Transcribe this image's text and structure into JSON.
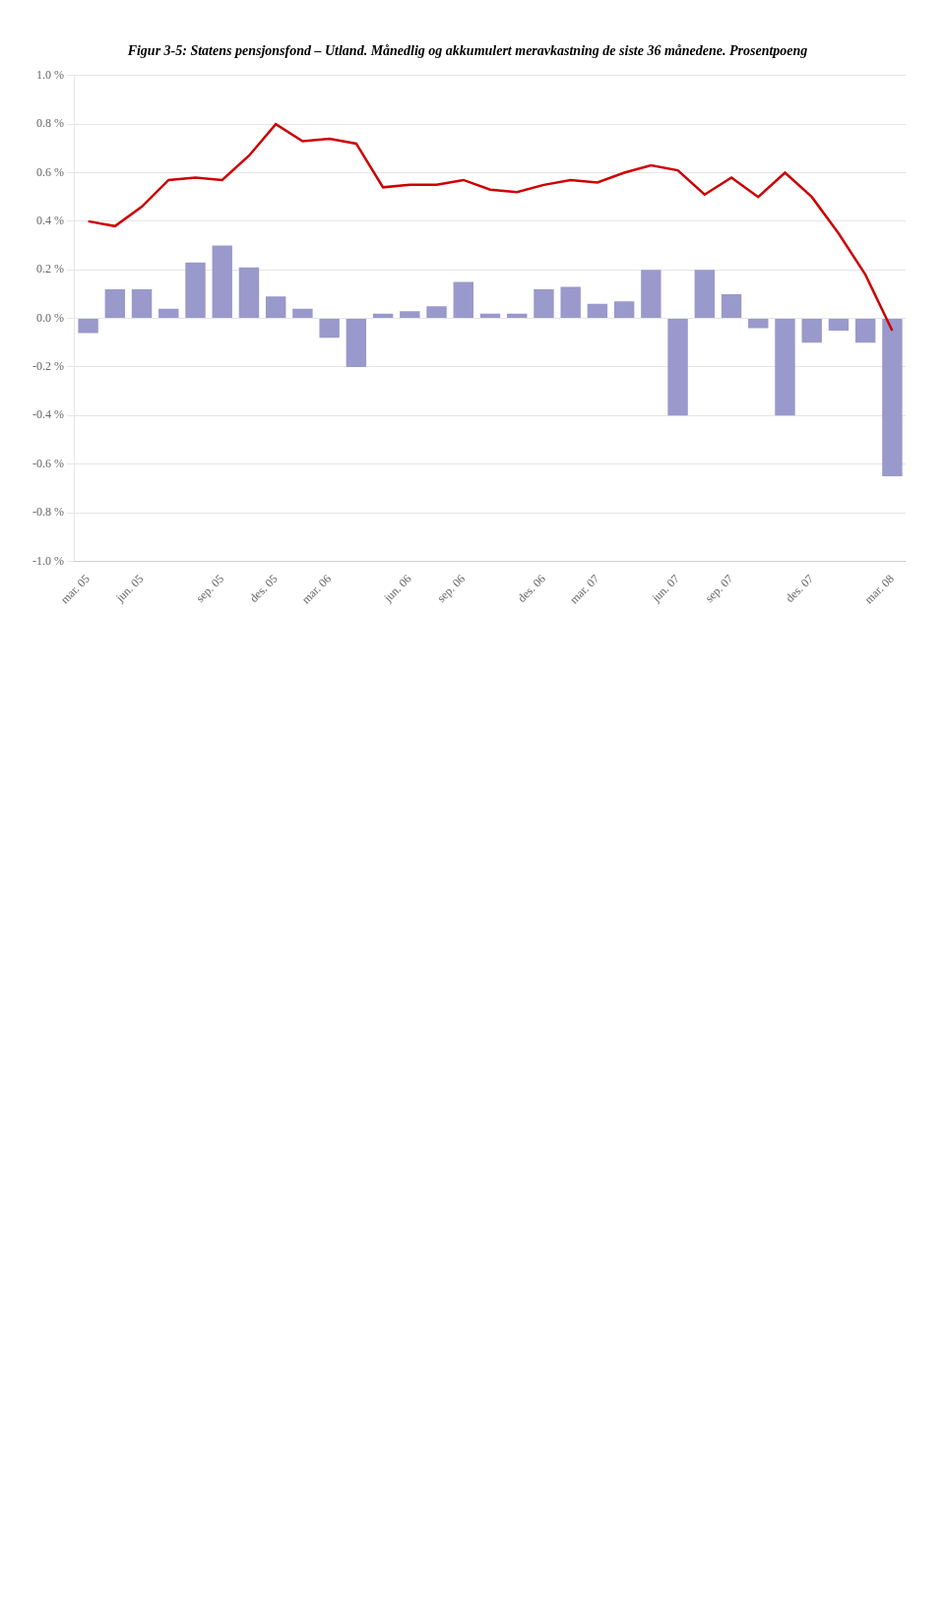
{
  "chart_data": {
    "type": "bar",
    "title": "Figur 3-5: Statens pensjonsfond – Utland. Månedlig og akkumulert meravkastning de siste 36 månedene. Prosentpoeng",
    "categories": [
      "mar. 05",
      null,
      "jun. 05",
      null,
      null,
      "sep. 05",
      null,
      "des. 05",
      null,
      "mar. 06",
      null,
      null,
      "jun. 06",
      null,
      "sep. 06",
      null,
      null,
      "des. 06",
      null,
      "mar. 07",
      null,
      null,
      "jun. 07",
      null,
      "sep. 07",
      null,
      null,
      "des. 07",
      null,
      null,
      "mar. 08"
    ],
    "series": [
      {
        "type": "bar",
        "color": "#9999cc",
        "values": [
          -0.06,
          0.12,
          0.12,
          0.04,
          0.23,
          0.3,
          0.21,
          0.09,
          0.04,
          -0.08,
          -0.2,
          0.02,
          0.03,
          0.05,
          0.15,
          0.02,
          0.02,
          0.12,
          0.13,
          0.06,
          0.07,
          0.2,
          -0.4,
          0.2,
          0.1,
          -0.04,
          -0.4,
          -0.1,
          -0.05,
          -0.1,
          -0.65
        ]
      },
      {
        "type": "line",
        "color": "#cc0000",
        "values": [
          0.4,
          0.38,
          0.46,
          0.57,
          0.58,
          0.57,
          0.67,
          0.8,
          0.73,
          0.74,
          0.72,
          0.54,
          0.55,
          0.55,
          0.57,
          0.53,
          0.52,
          0.55,
          0.57,
          0.56,
          0.6,
          0.63,
          0.61,
          0.51,
          0.58,
          0.5,
          0.6,
          0.5,
          0.35,
          0.18,
          -0.05
        ]
      }
    ],
    "ylim": [
      -1.0,
      1.0
    ],
    "yticks": [
      {
        "value": -1.0,
        "label": "-1.0 %"
      },
      {
        "value": -0.8,
        "label": "-0.8 %"
      },
      {
        "value": -0.6,
        "label": "-0.6 %"
      },
      {
        "value": -0.4,
        "label": "-0.4 %"
      },
      {
        "value": -0.2,
        "label": "-0.2 %"
      },
      {
        "value": 0.0,
        "label": "0.0 %"
      },
      {
        "value": 0.2,
        "label": "0.2 %"
      },
      {
        "value": 0.4,
        "label": "0.4 %"
      },
      {
        "value": 0.6,
        "label": "0.6 %"
      },
      {
        "value": 0.8,
        "label": "0.8 %"
      },
      {
        "value": 1.0,
        "label": "1.0 %"
      }
    ],
    "grid": true
  }
}
